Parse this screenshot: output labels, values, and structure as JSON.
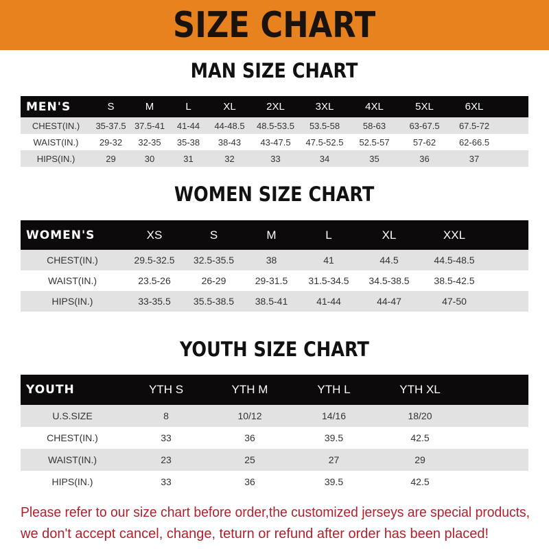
{
  "banner": {
    "title": "SIZE CHART",
    "color": "#e8821e"
  },
  "men": {
    "title": "MAN SIZE CHART",
    "header": [
      "MEN'S",
      "S",
      "M",
      "L",
      "XL",
      "2XL",
      "3XL",
      "4XL",
      "5XL",
      "6XL"
    ],
    "rows": [
      [
        "CHEST(IN.)",
        "35-37.5",
        "37.5-41",
        "41-44",
        "44-48.5",
        "48.5-53.5",
        "53.5-58",
        "58-63",
        "63-67.5",
        "67.5-72"
      ],
      [
        "WAIST(IN.)",
        "29-32",
        "32-35",
        "35-38",
        "38-43",
        "43-47.5",
        "47.5-52.5",
        "52.5-57",
        "57-62",
        "62-66.5"
      ],
      [
        "HIPS(IN.)",
        "29",
        "30",
        "31",
        "32",
        "33",
        "34",
        "35",
        "36",
        "37"
      ]
    ]
  },
  "women": {
    "title": "WOMEN SIZE CHART",
    "header": [
      "WOMEN'S",
      "XS",
      "S",
      "M",
      "L",
      "XL",
      "XXL"
    ],
    "rows": [
      [
        "CHEST(IN.)",
        "29.5-32.5",
        "32.5-35.5",
        "38",
        "41",
        "44.5",
        "44.5-48.5"
      ],
      [
        "WAIST(IN.)",
        "23.5-26",
        "26-29",
        "29-31.5",
        "31.5-34.5",
        "34.5-38.5",
        "38.5-42.5"
      ],
      [
        "HIPS(IN.)",
        "33-35.5",
        "35.5-38.5",
        "38.5-41",
        "41-44",
        "44-47",
        "47-50"
      ]
    ]
  },
  "youth": {
    "title": "YOUTH SIZE CHART",
    "header": [
      "YOUTH",
      "YTH S",
      "YTH M",
      "YTH L",
      "YTH XL"
    ],
    "rows": [
      [
        "U.S.SIZE",
        "8",
        "10/12",
        "14/16",
        "18/20"
      ],
      [
        "CHEST(IN.)",
        "33",
        "36",
        "39.5",
        "42.5"
      ],
      [
        "WAIST(IN.)",
        "23",
        "25",
        "27",
        "29"
      ],
      [
        "HIPS(IN.)",
        "33",
        "36",
        "39.5",
        "42.5"
      ]
    ]
  },
  "notice": {
    "line1": "Please refer to our size chart before order,the customized jerseys are special products,",
    "line2": "we don't accept cancel, change, teturn or refund after order has been placed!",
    "color": "#b3202c"
  }
}
